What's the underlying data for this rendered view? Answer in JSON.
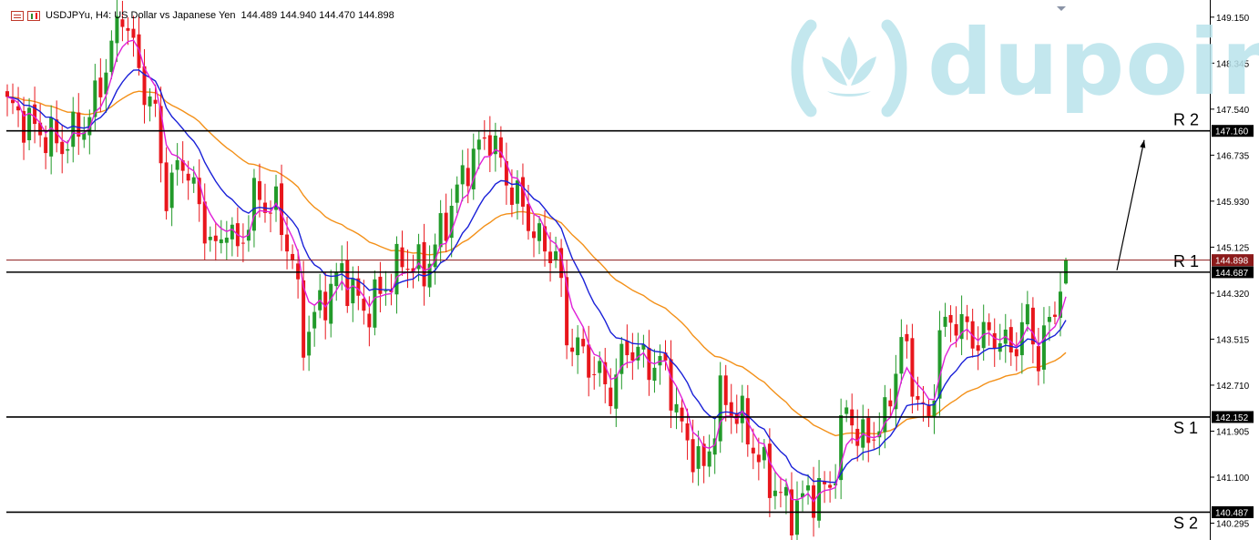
{
  "header": {
    "symbol_line": "USDJPYu, H4: US Dollar vs Japanese Yen",
    "ohlc": "144.489 144.940 144.470 144.898"
  },
  "watermark": {
    "brand_text": "dupoin",
    "logo_icon": "lotus-icon"
  },
  "colors": {
    "bull": "#229a2a",
    "bear": "#e8161c",
    "ma_fast": "#e020d8",
    "ma_mid": "#1a20d8",
    "ma_slow": "#f39018",
    "level_line": "#000000",
    "bid_line": "#8b1a1a"
  },
  "chart_data": {
    "type": "candlestick",
    "y_ticks": [
      "149.150",
      "148.345",
      "147.540",
      "146.735",
      "145.930",
      "145.125",
      "144.320",
      "143.515",
      "142.710",
      "141.905",
      "141.100",
      "140.295"
    ],
    "ylim": [
      140.0,
      149.45
    ],
    "levels": [
      {
        "name": "R 2",
        "value": 147.16,
        "tag": "147.160"
      },
      {
        "name": "R 1",
        "value": 144.687,
        "tag": "144.687"
      },
      {
        "name": "S 1",
        "value": 142.152,
        "tag": "142.152"
      },
      {
        "name": "S 2",
        "value": 140.487,
        "tag": "140.487"
      }
    ],
    "current_price": {
      "value": 144.898,
      "tag": "144.898"
    },
    "projection_arrow": {
      "from": 144.72,
      "to": 147.0
    },
    "anchors": [
      [
        0,
        147.6
      ],
      [
        5,
        147.2
      ],
      [
        10,
        146.9
      ],
      [
        15,
        147.4
      ],
      [
        19,
        148.6
      ],
      [
        21,
        149.3
      ],
      [
        24,
        148.2
      ],
      [
        27,
        147.4
      ],
      [
        29,
        146.0
      ],
      [
        32,
        146.7
      ],
      [
        36,
        145.5
      ],
      [
        38,
        145.0
      ],
      [
        40,
        145.6
      ],
      [
        42,
        145.0
      ],
      [
        45,
        146.0
      ],
      [
        49,
        145.8
      ],
      [
        52,
        144.9
      ],
      [
        54,
        143.5
      ],
      [
        57,
        144.1
      ],
      [
        61,
        144.7
      ],
      [
        65,
        144.0
      ],
      [
        68,
        144.3
      ],
      [
        72,
        144.9
      ],
      [
        76,
        144.7
      ],
      [
        80,
        145.6
      ],
      [
        84,
        146.6
      ],
      [
        88,
        147.1
      ],
      [
        91,
        146.3
      ],
      [
        94,
        145.8
      ],
      [
        97,
        145.2
      ],
      [
        100,
        145.0
      ],
      [
        102,
        143.6
      ],
      [
        106,
        143.1
      ],
      [
        110,
        142.6
      ],
      [
        113,
        143.4
      ],
      [
        117,
        143.1
      ],
      [
        120,
        143.0
      ],
      [
        123,
        141.9
      ],
      [
        127,
        141.2
      ],
      [
        130,
        142.5
      ],
      [
        134,
        142.1
      ],
      [
        137,
        141.4
      ],
      [
        140,
        140.9
      ],
      [
        143,
        140.5
      ],
      [
        146,
        140.8
      ],
      [
        150,
        140.9
      ],
      [
        153,
        142.3
      ],
      [
        156,
        141.7
      ],
      [
        160,
        142.1
      ],
      [
        163,
        143.5
      ],
      [
        166,
        142.5
      ],
      [
        168,
        142.0
      ],
      [
        170,
        143.6
      ],
      [
        173,
        143.9
      ],
      [
        176,
        143.5
      ],
      [
        180,
        143.6
      ],
      [
        183,
        143.3
      ],
      [
        186,
        143.9
      ],
      [
        188,
        143.2
      ],
      [
        191,
        144.1
      ],
      [
        193,
        144.898
      ]
    ],
    "moving_averages": [
      {
        "name": "fast",
        "period": 5
      },
      {
        "name": "mid",
        "period": 14
      },
      {
        "name": "slow",
        "period": 40
      }
    ]
  }
}
